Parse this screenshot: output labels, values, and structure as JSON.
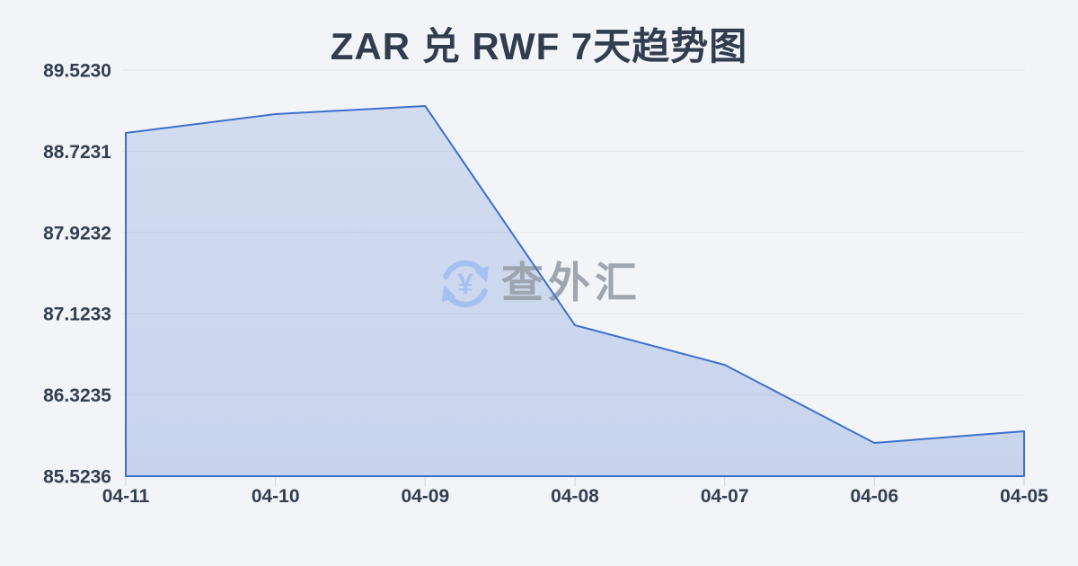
{
  "page": {
    "title": "ZAR 兑 RWF 7天趋势图"
  },
  "watermark": {
    "text": "查外汇",
    "icon": "currency-exchange-icon"
  },
  "colors": {
    "background": "#f2f4f7",
    "title_text": "#313c4e",
    "axis_text": "#333e50",
    "grid_line": "#e3e6ea",
    "tick": "#d4d7dd",
    "trend_line": "#3f6fce",
    "area_fill_top": "#3f6fce2e",
    "area_fill_bottom": "#3f6fce3d",
    "watermark_text": "#99a0aa",
    "watermark_icon": "#a6c1f1"
  },
  "chart_data": {
    "type": "area",
    "title": "ZAR 兑 RWF 7天趋势图",
    "categories": [
      "04-11",
      "04-10",
      "04-09",
      "04-08",
      "04-07",
      "04-06",
      "04-05"
    ],
    "values": [
      88.904,
      89.089,
      89.169,
      87.01,
      86.62,
      85.851,
      85.966
    ],
    "y_tick_labels": [
      "89.5230",
      "88.7231",
      "87.9232",
      "87.1233",
      "86.3235",
      "85.5236"
    ],
    "ylim": [
      85.5236,
      89.523
    ],
    "xlabel": "",
    "ylabel": "",
    "grid": true,
    "legend": false
  }
}
